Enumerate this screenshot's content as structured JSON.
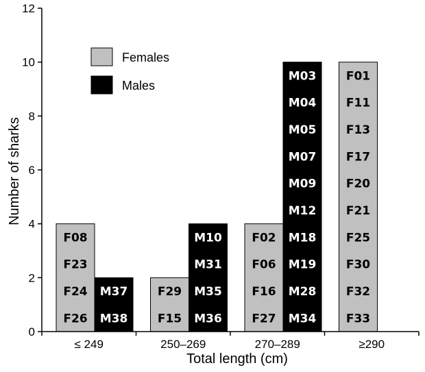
{
  "chart_data": {
    "type": "bar",
    "title": "",
    "xlabel": "Total length (cm)",
    "ylabel": "Number of sharks",
    "categories": [
      "≤ 249",
      "250–269",
      "270–289",
      "≥290"
    ],
    "ylim": [
      0,
      12
    ],
    "yticks": [
      "0",
      "2",
      "4",
      "6",
      "8",
      "10",
      "12"
    ],
    "grid": false,
    "legend_position": "top-left",
    "series": [
      {
        "name": "Females",
        "color": "#c0c0c0",
        "label_color": "#000000",
        "values": [
          4,
          2,
          4,
          10
        ],
        "ids": [
          [
            "F08",
            "F23",
            "F24",
            "F26"
          ],
          [
            "F29",
            "F15"
          ],
          [
            "F02",
            "F06",
            "F16",
            "F27"
          ],
          [
            "F01",
            "F11",
            "F13",
            "F17",
            "F20",
            "F21",
            "F25",
            "F30",
            "F32",
            "F33"
          ]
        ]
      },
      {
        "name": "Males",
        "color": "#000000",
        "label_color": "#ffffff",
        "values": [
          2,
          4,
          10,
          0
        ],
        "ids": [
          [
            "M37",
            "M38"
          ],
          [
            "M10",
            "M31",
            "M35",
            "M36"
          ],
          [
            "M03",
            "M04",
            "M05",
            "M07",
            "M09",
            "M12",
            "M18",
            "M19",
            "M28",
            "M34"
          ],
          []
        ]
      }
    ]
  }
}
